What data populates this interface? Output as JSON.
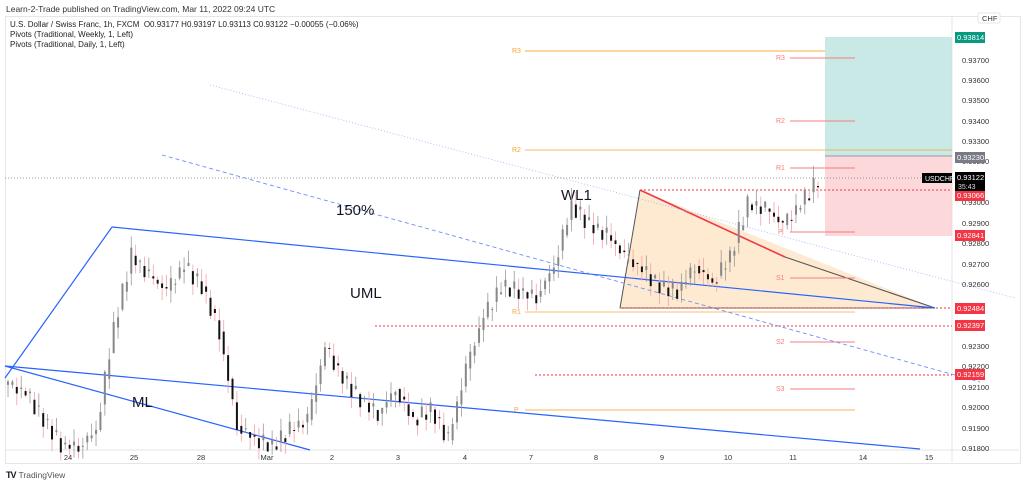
{
  "header": {
    "published": "Learn-2-Trade published on TradingView.com, Mar 11, 2022 09:24 UTC"
  },
  "legend": {
    "symbol_line": "U.S. Dollar / Swiss Franc, 1h, FXCM",
    "ohlc": "O0.93177  H0.93197  L0.93113  C0.93122  −0.00055 (−0.06%)",
    "indicator_1": "Pivots (Traditional, Weekly, 1, Left)",
    "indicator_2": "Pivots (Traditional, Daily, 1, Left)"
  },
  "price_axis": {
    "currency": "CHF",
    "ticks": [
      "0.93700",
      "0.93600",
      "0.93500",
      "0.93400",
      "0.93300",
      "0.93200",
      "0.93000",
      "0.92900",
      "0.92800",
      "0.92700",
      "0.92600",
      "0.92300",
      "0.92200",
      "0.92100",
      "0.92000",
      "0.91900",
      "0.91800"
    ],
    "badges": [
      {
        "label": "0.93814",
        "color": "#089981"
      },
      {
        "label": "0.93230",
        "color": "#787b86"
      },
      {
        "label": "0.93066",
        "color": "#f23645"
      },
      {
        "label": "0.92841",
        "color": "#f23645"
      },
      {
        "label": "0.92484",
        "color": "#f23645"
      },
      {
        "label": "0.92397",
        "color": "#f23645"
      },
      {
        "label": "0.92159",
        "color": "#f23645"
      }
    ],
    "current": {
      "symbol": "USDCHF",
      "price": "0.93122",
      "countdown": "35:43"
    }
  },
  "time_axis": {
    "labels": [
      "24",
      "25",
      "28",
      "Mar",
      "2",
      "3",
      "4",
      "7",
      "8",
      "9",
      "10",
      "11",
      "14",
      "15"
    ]
  },
  "annotations": {
    "label_150": "150%",
    "label_uml": "UML",
    "label_ml": "ML",
    "label_wl1": "WL1"
  },
  "pivots": {
    "weekly": [
      "R3",
      "R2",
      "R1",
      "P"
    ],
    "daily": [
      "R3",
      "R2",
      "R1",
      "P",
      "S1",
      "S2",
      "S3"
    ]
  },
  "footer": {
    "brand": "TradingView"
  },
  "chart_data": {
    "type": "candlestick",
    "title": "U.S. Dollar / Swiss Franc, 1h, FXCM",
    "xlabel": "",
    "ylabel": "CHF",
    "ylim": [
      0.9178,
      0.9388
    ],
    "x_ticks": [
      "24",
      "25",
      "28",
      "Mar",
      "2",
      "3",
      "4",
      "7",
      "8",
      "9",
      "10",
      "11",
      "14",
      "15"
    ],
    "last": {
      "open": 0.93177,
      "high": 0.93197,
      "low": 0.93113,
      "close": 0.93122,
      "change": -0.00055,
      "change_pct": -0.06
    },
    "horizontal_levels": [
      {
        "name": "Weekly R3",
        "value": 0.9375
      },
      {
        "name": "Weekly R2",
        "value": 0.9325
      },
      {
        "name": "Weekly R1",
        "value": 0.9245
      },
      {
        "name": "Weekly P",
        "value": 0.9199
      },
      {
        "name": "Daily R3",
        "value": 0.9371
      },
      {
        "name": "Daily R2",
        "value": 0.934
      },
      {
        "name": "Daily R1",
        "value": 0.9318
      },
      {
        "name": "Daily P",
        "value": 0.9286
      },
      {
        "name": "Daily S1",
        "value": 0.9264
      },
      {
        "name": "Daily S2",
        "value": 0.9232
      },
      {
        "name": "Daily S3",
        "value": 0.921
      },
      {
        "name": "Resistance (dotted)",
        "value": 0.93066
      },
      {
        "name": "Support (dotted)",
        "value": 0.92484
      },
      {
        "name": "Support (dotted)",
        "value": 0.92397
      },
      {
        "name": "Support (dotted)",
        "value": 0.92159
      }
    ],
    "position": {
      "type": "long",
      "entry": 0.9323,
      "target": 0.93814,
      "stop": 0.92841
    },
    "drawings": [
      "Pitchfork (ML, UML, 150%, WL1)",
      "Descending triangle"
    ],
    "series": [
      {
        "name": "close (approx, hourly sampled)",
        "values": [
          0.9212,
          0.9208,
          0.9195,
          0.9183,
          0.9182,
          0.919,
          0.924,
          0.9275,
          0.9265,
          0.9258,
          0.927,
          0.926,
          0.9238,
          0.9192,
          0.9186,
          0.9182,
          0.919,
          0.9195,
          0.923,
          0.9215,
          0.9205,
          0.9198,
          0.921,
          0.9195,
          0.92,
          0.9185,
          0.922,
          0.9245,
          0.926,
          0.9258,
          0.9255,
          0.927,
          0.93,
          0.929,
          0.9285,
          0.9275,
          0.9268,
          0.926,
          0.9258,
          0.927,
          0.9262,
          0.9275,
          0.93,
          0.9298,
          0.929,
          0.93,
          0.9312
        ]
      }
    ]
  }
}
